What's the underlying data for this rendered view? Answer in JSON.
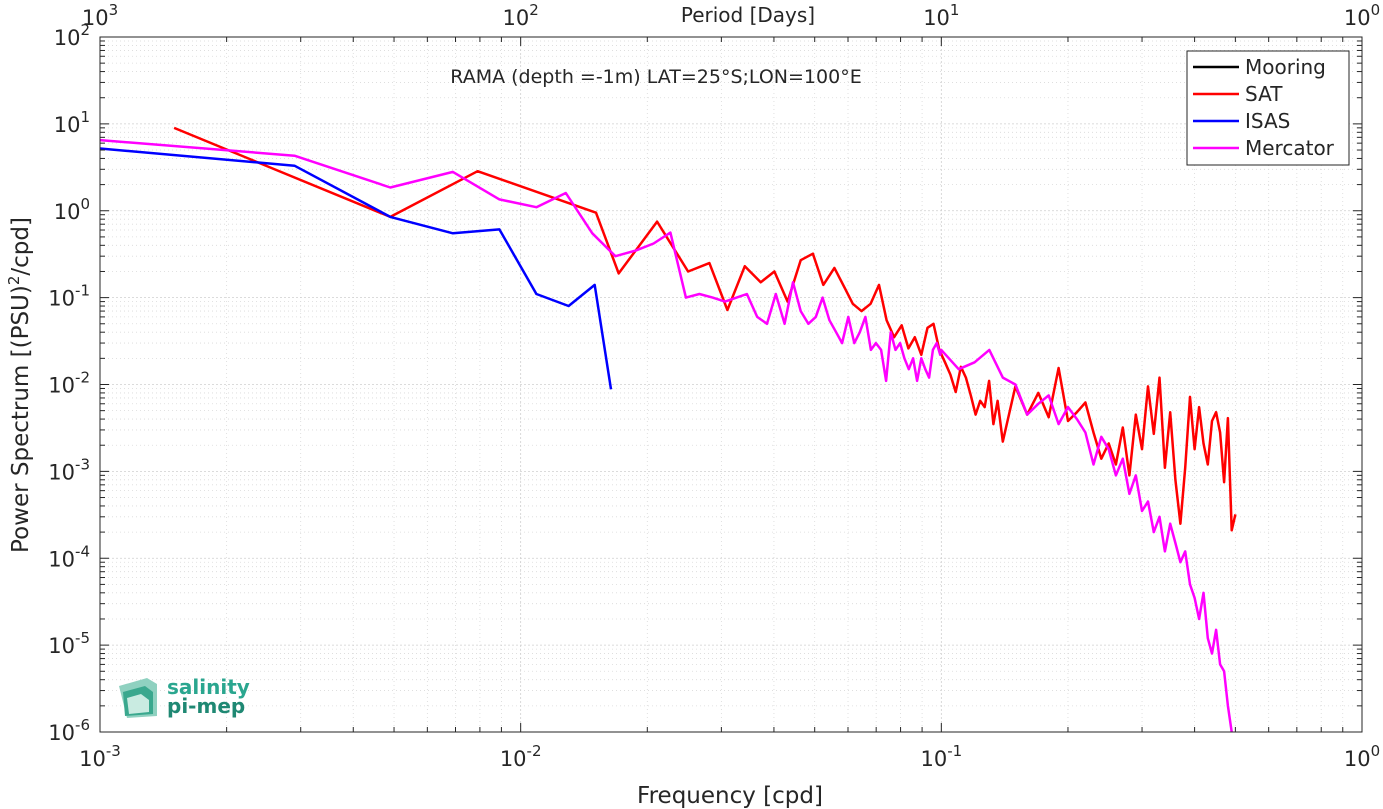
{
  "chart_data": {
    "type": "line",
    "title": "RAMA (depth =-1m) LAT=25°S;LON=100°E",
    "xlabel": "Frequency [cpd]",
    "ylabel": "Power Spectrum [(PSU)",
    "ylabel_sup": "2",
    "ylabel_tail": "/cpd]",
    "top_xlabel": "Period [Days]",
    "x_scale": "log",
    "y_scale": "log",
    "xlim": [
      0.001,
      1
    ],
    "ylim": [
      1e-06,
      100
    ],
    "grid": true,
    "legend_position": "top-right",
    "x_ticks": [
      {
        "value": 0.001,
        "base": "10",
        "exp": "-3"
      },
      {
        "value": 0.01,
        "base": "10",
        "exp": "-2"
      },
      {
        "value": 0.1,
        "base": "10",
        "exp": "-1"
      },
      {
        "value": 1,
        "base": "10",
        "exp": "0"
      }
    ],
    "top_ticks": [
      {
        "value": 1000,
        "base": "10",
        "exp": "3"
      },
      {
        "value": 100,
        "base": "10",
        "exp": "2"
      },
      {
        "value": 10,
        "base": "10",
        "exp": "1"
      },
      {
        "value": 1,
        "base": "10",
        "exp": "0"
      }
    ],
    "y_ticks": [
      {
        "value": 100,
        "base": "10",
        "exp": "2"
      },
      {
        "value": 10,
        "base": "10",
        "exp": "1"
      },
      {
        "value": 1,
        "base": "10",
        "exp": "0"
      },
      {
        "value": 0.1,
        "base": "10",
        "exp": "-1"
      },
      {
        "value": 0.01,
        "base": "10",
        "exp": "-2"
      },
      {
        "value": 0.001,
        "base": "10",
        "exp": "-3"
      },
      {
        "value": 0.0001,
        "base": "10",
        "exp": "-4"
      },
      {
        "value": 1e-05,
        "base": "10",
        "exp": "-5"
      },
      {
        "value": 1e-06,
        "base": "10",
        "exp": "-6"
      }
    ],
    "series": [
      {
        "name": "Mooring",
        "color": "#000000",
        "x": [],
        "y": []
      },
      {
        "name": "SAT",
        "color": "#ff0000",
        "x": [
          0.0015,
          0.0049,
          0.0079,
          0.0151,
          0.0171,
          0.0211,
          0.025,
          0.0281,
          0.031,
          0.0341,
          0.0372,
          0.0401,
          0.0431,
          0.0463,
          0.0495,
          0.0524,
          0.0557,
          0.0589,
          0.0616,
          0.0646,
          0.0679,
          0.0711,
          0.0741,
          0.0772,
          0.0805,
          0.0835,
          0.0865,
          0.0896,
          0.0927,
          0.0958,
          0.0989,
          0.102,
          0.1051,
          0.1082,
          0.1113,
          0.1144,
          0.1175,
          0.1206,
          0.1237,
          0.1268,
          0.1299,
          0.133,
          0.1361,
          0.14,
          0.15,
          0.16,
          0.17,
          0.18,
          0.19,
          0.2,
          0.21,
          0.22,
          0.23,
          0.24,
          0.25,
          0.26,
          0.27,
          0.28,
          0.29,
          0.3,
          0.31,
          0.32,
          0.33,
          0.34,
          0.35,
          0.36,
          0.37,
          0.38,
          0.39,
          0.4,
          0.41,
          0.42,
          0.43,
          0.44,
          0.45,
          0.46,
          0.47,
          0.48,
          0.49,
          0.5
        ],
        "y": [
          9,
          0.85,
          2.85,
          0.95,
          0.19,
          0.75,
          0.2,
          0.25,
          0.072,
          0.23,
          0.15,
          0.2,
          0.09,
          0.27,
          0.32,
          0.14,
          0.22,
          0.13,
          0.085,
          0.07,
          0.085,
          0.14,
          0.055,
          0.035,
          0.048,
          0.026,
          0.035,
          0.022,
          0.045,
          0.05,
          0.025,
          0.018,
          0.013,
          0.0082,
          0.016,
          0.012,
          0.0075,
          0.0045,
          0.0065,
          0.0055,
          0.011,
          0.0035,
          0.0065,
          0.0022,
          0.0095,
          0.0045,
          0.008,
          0.0042,
          0.0155,
          0.0038,
          0.0048,
          0.0062,
          0.0028,
          0.0014,
          0.0021,
          0.0012,
          0.0032,
          0.0009,
          0.0045,
          0.0018,
          0.0095,
          0.0027,
          0.012,
          0.0011,
          0.0048,
          0.0008,
          0.00025,
          0.0011,
          0.0072,
          0.0018,
          0.0055,
          0.0021,
          0.0012,
          0.0038,
          0.0048,
          0.0028,
          0.00075,
          0.0041,
          0.00021,
          0.00032
        ]
      },
      {
        "name": "ISAS",
        "color": "#0000ff",
        "x": [
          0.001,
          0.0029,
          0.0049,
          0.0069,
          0.0089,
          0.0109,
          0.013,
          0.015,
          0.0164
        ],
        "y": [
          5.2,
          3.3,
          0.85,
          0.55,
          0.61,
          0.11,
          0.08,
          0.14,
          0.0088
        ]
      },
      {
        "name": "Mercator",
        "color": "#ff00ff",
        "x": [
          0.001,
          0.0029,
          0.0049,
          0.0069,
          0.0089,
          0.0109,
          0.0128,
          0.0148,
          0.0168,
          0.0188,
          0.0207,
          0.0227,
          0.0247,
          0.0266,
          0.0286,
          0.0306,
          0.0326,
          0.0345,
          0.0365,
          0.0385,
          0.0404,
          0.0424,
          0.0444,
          0.0463,
          0.0483,
          0.0503,
          0.0522,
          0.0542,
          0.0562,
          0.0581,
          0.0601,
          0.0621,
          0.064,
          0.066,
          0.068,
          0.0699,
          0.0719,
          0.0739,
          0.0758,
          0.0778,
          0.0798,
          0.0817,
          0.0837,
          0.0857,
          0.0876,
          0.0896,
          0.0916,
          0.0935,
          0.0955,
          0.0975,
          0.0994,
          0.1,
          0.11,
          0.12,
          0.13,
          0.14,
          0.15,
          0.16,
          0.17,
          0.18,
          0.19,
          0.2,
          0.21,
          0.22,
          0.23,
          0.24,
          0.25,
          0.26,
          0.27,
          0.28,
          0.29,
          0.3,
          0.31,
          0.32,
          0.33,
          0.34,
          0.35,
          0.36,
          0.37,
          0.38,
          0.39,
          0.4,
          0.41,
          0.42,
          0.43,
          0.44,
          0.45,
          0.46,
          0.47,
          0.48,
          0.49
        ],
        "y": [
          6.5,
          4.3,
          1.85,
          2.8,
          1.35,
          1.1,
          1.6,
          0.55,
          0.3,
          0.35,
          0.42,
          0.56,
          0.1,
          0.11,
          0.1,
          0.09,
          0.1,
          0.11,
          0.06,
          0.05,
          0.11,
          0.05,
          0.15,
          0.07,
          0.05,
          0.06,
          0.1,
          0.055,
          0.04,
          0.03,
          0.06,
          0.03,
          0.04,
          0.06,
          0.025,
          0.03,
          0.025,
          0.011,
          0.04,
          0.025,
          0.03,
          0.02,
          0.015,
          0.02,
          0.011,
          0.02,
          0.015,
          0.012,
          0.025,
          0.03,
          0.022,
          0.025,
          0.015,
          0.018,
          0.025,
          0.012,
          0.01,
          0.0045,
          0.006,
          0.0075,
          0.0035,
          0.0055,
          0.004,
          0.0028,
          0.0012,
          0.0025,
          0.0018,
          0.0009,
          0.0014,
          0.00055,
          0.0009,
          0.00035,
          0.00045,
          0.0002,
          0.0003,
          0.00012,
          0.00025,
          0.00015,
          9e-05,
          0.00012,
          5e-05,
          3.5e-05,
          2e-05,
          4e-05,
          1.2e-05,
          8e-06,
          1.5e-05,
          6e-06,
          5e-06,
          2e-06,
          1e-06
        ]
      }
    ]
  },
  "logo": {
    "line1": "salinity",
    "line2": "pi-mep",
    "color": "#2aa68f"
  }
}
